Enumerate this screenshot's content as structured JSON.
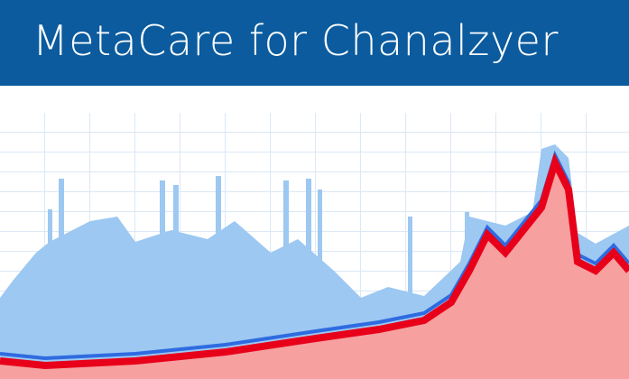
{
  "header": {
    "title": "MetaCare for Chanalzyer"
  }
}
